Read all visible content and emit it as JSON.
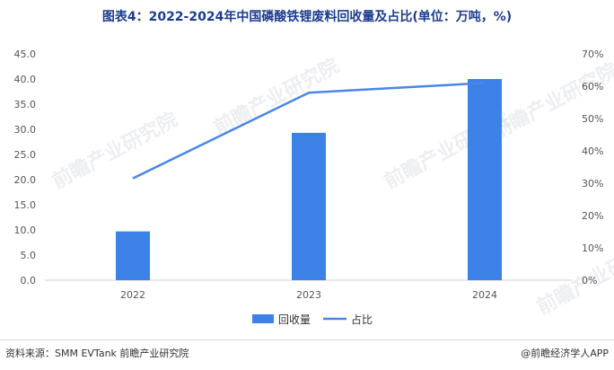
{
  "title": "图表4：2022-2024年中国磷酸铁锂废料回收量及占比(单位：万吨，%)",
  "chart_data": {
    "type": "bar",
    "categories": [
      "2022",
      "2023",
      "2024"
    ],
    "series": [
      {
        "name": "回收量",
        "type": "bar",
        "axis": "left",
        "color": "#3c82e6",
        "values": [
          9.7,
          29.3,
          40.0
        ]
      },
      {
        "name": "占比",
        "type": "line",
        "axis": "right",
        "color": "#4a86e8",
        "values": [
          31.5,
          58,
          61
        ]
      }
    ],
    "ylim_left": [
      0,
      45
    ],
    "ylim_right": [
      0,
      70
    ],
    "left_ticks": [
      "0.0",
      "5.0",
      "10.0",
      "15.0",
      "20.0",
      "25.0",
      "30.0",
      "35.0",
      "40.0",
      "45.0"
    ],
    "right_ticks": [
      "0%",
      "10%",
      "20%",
      "30%",
      "40%",
      "50%",
      "60%",
      "70%"
    ],
    "grid": false,
    "legend": "bottom"
  },
  "footer": {
    "source": "资料来源：SMM EVTank 前瞻产业研究院",
    "brand": "@前瞻经济学人APP"
  },
  "watermark": "前瞻产业研究院"
}
